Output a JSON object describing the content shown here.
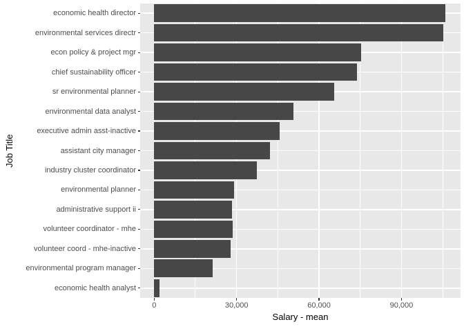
{
  "chart_data": {
    "type": "bar",
    "orientation": "horizontal",
    "title": "",
    "xlabel": "Salary - mean",
    "ylabel": "Job Title",
    "categories": [
      "economic health director",
      "environmental services directr",
      "econ policy & project mgr",
      "chief sustainability officer",
      "sr environmental planner",
      "environmental data analyst",
      "executive admin asst-inactive",
      "assistant city manager",
      "industry cluster coordinator",
      "environmental planner",
      "administrative support ii",
      "volunteer coordinator - mhe",
      "volunteer coord - mhe-inactive",
      "environmental program manager",
      "economic health analyst"
    ],
    "values": [
      106000,
      105300,
      75400,
      73900,
      65500,
      50800,
      45700,
      42100,
      37300,
      29200,
      28400,
      28600,
      27800,
      21200,
      1900
    ],
    "x_ticks": [
      {
        "value": 0,
        "label": "0"
      },
      {
        "value": 30000,
        "label": "30,000"
      },
      {
        "value": 60000,
        "label": "60,000"
      },
      {
        "value": 90000,
        "label": "90,000"
      }
    ],
    "x_minor_ticks": [
      15000,
      45000,
      75000,
      105000
    ],
    "xlim": [
      -5100,
      111500
    ],
    "bar_width_fraction": 0.9,
    "grid": true,
    "legend": false,
    "colors": {
      "bar_fill": "#474747",
      "panel_bg": "#E8E8E8",
      "grid": "#FFFFFF",
      "axis_text": "#4D4D4D",
      "axis_title": "#000000",
      "tick_mark": "#333333",
      "background": "#FFFFFF"
    }
  }
}
